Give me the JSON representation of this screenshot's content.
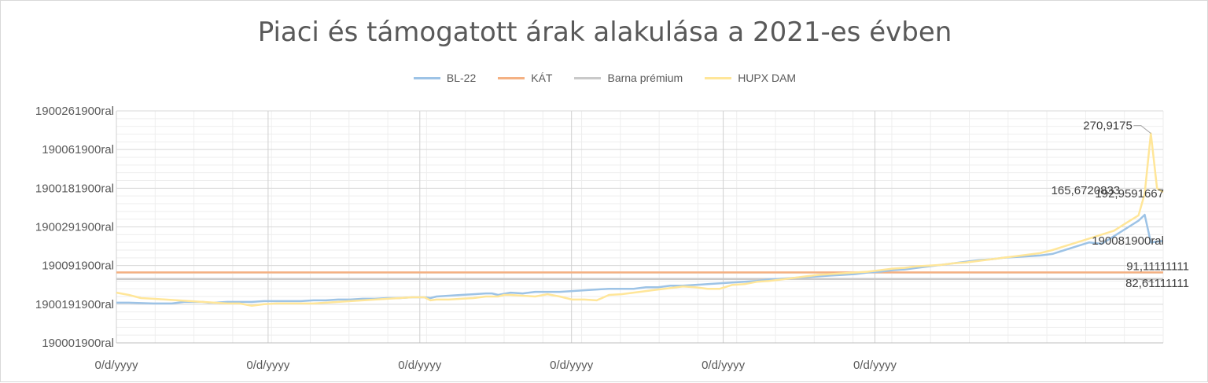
{
  "chart_data": {
    "type": "line",
    "title": "Piaci és támogatott árak alakulása a 2021-es évben",
    "xlabel": "",
    "ylabel": "",
    "y_tick_labels": [
      "1900261900ral",
      "190061900ral",
      "1900181900ral",
      "1900291900ral",
      "190091900ral",
      "1900191900ral",
      "190001900ral"
    ],
    "x_tick_labels": [
      "0/d/yyyy",
      "0/d/yyyy",
      "0/d/yyyy",
      "0/d/yyyy",
      "0/d/yyyy",
      "0/d/yyyy"
    ],
    "ylim": [
      0,
      300
    ],
    "grid": true,
    "legend_position": "top",
    "series": [
      {
        "name": "BL-22",
        "color": "#9dc3e6",
        "values": [
          [
            0,
            52
          ],
          [
            2,
            52
          ],
          [
            4,
            51.5
          ],
          [
            6,
            51
          ],
          [
            8,
            51
          ],
          [
            9,
            51
          ],
          [
            10,
            52
          ],
          [
            11,
            53
          ],
          [
            12,
            53
          ],
          [
            14,
            53
          ],
          [
            15,
            52
          ],
          [
            16,
            52
          ],
          [
            18,
            53
          ],
          [
            20,
            53
          ],
          [
            22,
            53
          ],
          [
            24,
            54
          ],
          [
            26,
            54
          ],
          [
            28,
            54
          ],
          [
            30,
            54
          ],
          [
            32,
            55
          ],
          [
            34,
            55
          ],
          [
            36,
            56
          ],
          [
            38,
            56
          ],
          [
            40,
            57
          ],
          [
            42,
            57
          ],
          [
            44,
            58
          ],
          [
            46,
            58
          ],
          [
            48,
            59
          ],
          [
            50,
            59
          ],
          [
            51,
            58
          ],
          [
            52,
            60
          ],
          [
            54,
            61
          ],
          [
            56,
            62
          ],
          [
            58,
            63
          ],
          [
            60,
            64
          ],
          [
            61,
            64
          ],
          [
            62,
            62
          ],
          [
            64,
            65
          ],
          [
            66,
            64
          ],
          [
            68,
            66
          ],
          [
            70,
            66
          ],
          [
            72,
            66
          ],
          [
            74,
            67
          ],
          [
            76,
            68
          ],
          [
            78,
            69
          ],
          [
            80,
            70
          ],
          [
            82,
            70
          ],
          [
            84,
            70
          ],
          [
            86,
            72
          ],
          [
            88,
            72
          ],
          [
            90,
            74
          ],
          [
            92,
            74
          ],
          [
            94,
            75
          ],
          [
            96,
            76
          ],
          [
            98,
            77
          ],
          [
            100,
            78
          ],
          [
            102,
            79
          ],
          [
            104,
            80
          ],
          [
            106,
            82
          ],
          [
            108,
            83
          ],
          [
            110,
            84
          ],
          [
            112,
            85
          ],
          [
            114,
            86
          ],
          [
            116,
            87
          ],
          [
            118,
            88
          ],
          [
            120,
            89
          ],
          [
            122,
            91
          ],
          [
            124,
            92
          ],
          [
            126,
            94
          ],
          [
            128,
            95
          ],
          [
            130,
            97
          ],
          [
            132,
            99
          ],
          [
            134,
            101
          ],
          [
            136,
            103
          ],
          [
            138,
            105
          ],
          [
            140,
            107
          ],
          [
            142,
            108
          ],
          [
            144,
            110
          ],
          [
            146,
            111
          ],
          [
            148,
            112
          ],
          [
            150,
            113
          ],
          [
            152,
            115
          ],
          [
            154,
            120
          ],
          [
            156,
            125
          ],
          [
            158,
            130
          ],
          [
            160,
            128
          ],
          [
            162,
            138
          ],
          [
            164,
            148
          ],
          [
            166,
            158
          ],
          [
            167,
            165.67
          ],
          [
            168,
            130
          ],
          [
            169,
            131
          ],
          [
            170,
            132
          ]
        ]
      },
      {
        "name": "KÁT",
        "color": "#f4b183",
        "values": [
          [
            0,
            91.11111111
          ],
          [
            170,
            91.11111111
          ]
        ]
      },
      {
        "name": "Barna prémium",
        "color": "#c9c9c9",
        "values": [
          [
            0,
            82.61111111
          ],
          [
            170,
            82.61111111
          ]
        ]
      },
      {
        "name": "HUPX DAM",
        "color": "#ffe699",
        "values": [
          [
            0,
            65
          ],
          [
            2,
            62
          ],
          [
            4,
            58
          ],
          [
            6,
            57
          ],
          [
            8,
            56
          ],
          [
            10,
            55
          ],
          [
            12,
            54
          ],
          [
            14,
            53
          ],
          [
            16,
            52
          ],
          [
            18,
            51
          ],
          [
            20,
            51
          ],
          [
            22,
            48
          ],
          [
            24,
            50
          ],
          [
            26,
            51
          ],
          [
            28,
            51
          ],
          [
            30,
            51
          ],
          [
            32,
            51
          ],
          [
            34,
            52
          ],
          [
            36,
            53
          ],
          [
            38,
            54
          ],
          [
            40,
            55
          ],
          [
            42,
            56
          ],
          [
            44,
            57
          ],
          [
            46,
            58
          ],
          [
            48,
            59
          ],
          [
            50,
            59
          ],
          [
            51,
            55
          ],
          [
            52,
            56
          ],
          [
            54,
            56
          ],
          [
            56,
            57
          ],
          [
            58,
            58
          ],
          [
            60,
            60
          ],
          [
            62,
            60
          ],
          [
            63,
            62
          ],
          [
            64,
            62
          ],
          [
            66,
            61
          ],
          [
            68,
            60
          ],
          [
            70,
            63
          ],
          [
            72,
            60
          ],
          [
            74,
            56
          ],
          [
            76,
            56
          ],
          [
            78,
            55
          ],
          [
            80,
            62
          ],
          [
            82,
            63
          ],
          [
            84,
            65
          ],
          [
            86,
            67
          ],
          [
            88,
            69
          ],
          [
            90,
            71
          ],
          [
            92,
            73
          ],
          [
            94,
            72
          ],
          [
            96,
            70
          ],
          [
            98,
            70
          ],
          [
            100,
            75
          ],
          [
            102,
            76
          ],
          [
            104,
            79
          ],
          [
            106,
            80
          ],
          [
            108,
            82
          ],
          [
            110,
            84
          ],
          [
            112,
            86
          ],
          [
            114,
            88
          ],
          [
            116,
            89
          ],
          [
            118,
            90
          ],
          [
            120,
            91
          ],
          [
            122,
            92
          ],
          [
            124,
            94
          ],
          [
            126,
            96
          ],
          [
            128,
            97
          ],
          [
            130,
            99
          ],
          [
            132,
            100
          ],
          [
            134,
            101
          ],
          [
            136,
            103
          ],
          [
            138,
            104
          ],
          [
            140,
            106
          ],
          [
            142,
            108
          ],
          [
            144,
            110
          ],
          [
            146,
            112
          ],
          [
            148,
            114
          ],
          [
            150,
            116
          ],
          [
            152,
            120
          ],
          [
            154,
            125
          ],
          [
            156,
            130
          ],
          [
            158,
            135
          ],
          [
            160,
            140
          ],
          [
            162,
            145
          ],
          [
            164,
            155
          ],
          [
            166,
            165
          ],
          [
            167,
            192.9591667
          ],
          [
            168,
            270.9175
          ],
          [
            169,
            200
          ],
          [
            170,
            195
          ]
        ]
      }
    ],
    "data_labels": [
      {
        "text": "270,9175"
      },
      {
        "text": "192,9591667"
      },
      {
        "text": "165,6720833"
      },
      {
        "text": "190081900ral"
      },
      {
        "text": "91,11111111"
      },
      {
        "text": "82,61111111"
      }
    ]
  }
}
